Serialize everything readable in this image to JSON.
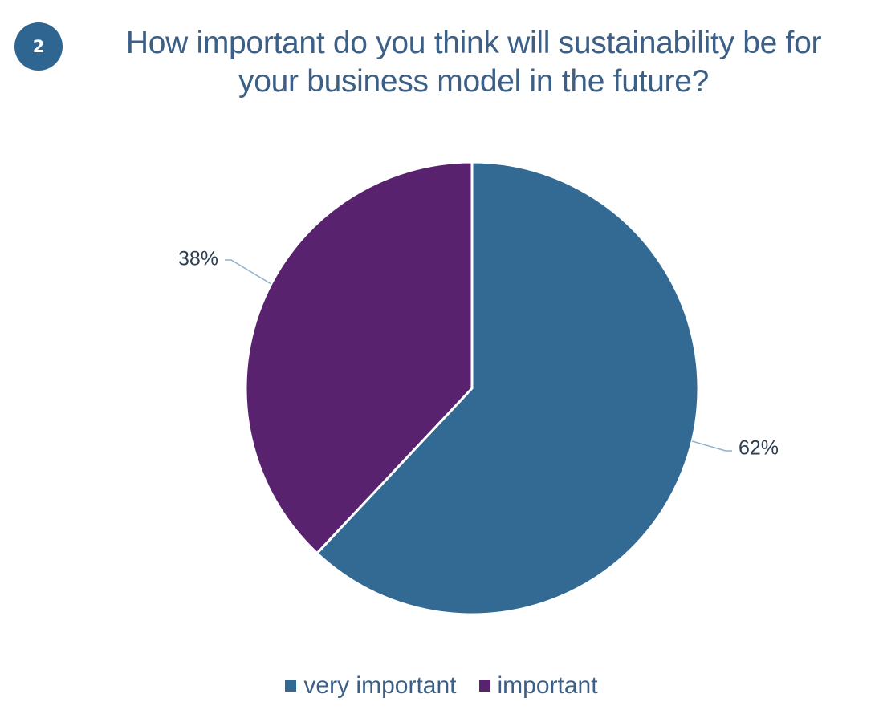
{
  "badge": {
    "number": "2",
    "color": "#2f6591"
  },
  "title": {
    "line1": "How important do you think will sustainability be for",
    "line2": "your business model in the future?",
    "color": "#3b5f86"
  },
  "chart_data": {
    "type": "pie",
    "title": "How important do you think will sustainability be for your business model in the future?",
    "slices": [
      {
        "name": "very important",
        "value": 62,
        "label": "62%",
        "color": "#336a94"
      },
      {
        "name": "important",
        "value": 38,
        "label": "38%",
        "color": "#58226f"
      }
    ],
    "legend_position": "bottom"
  },
  "legend": {
    "items": [
      {
        "label": "very important",
        "color": "#336a94"
      },
      {
        "label": "important",
        "color": "#58226f"
      }
    ]
  }
}
